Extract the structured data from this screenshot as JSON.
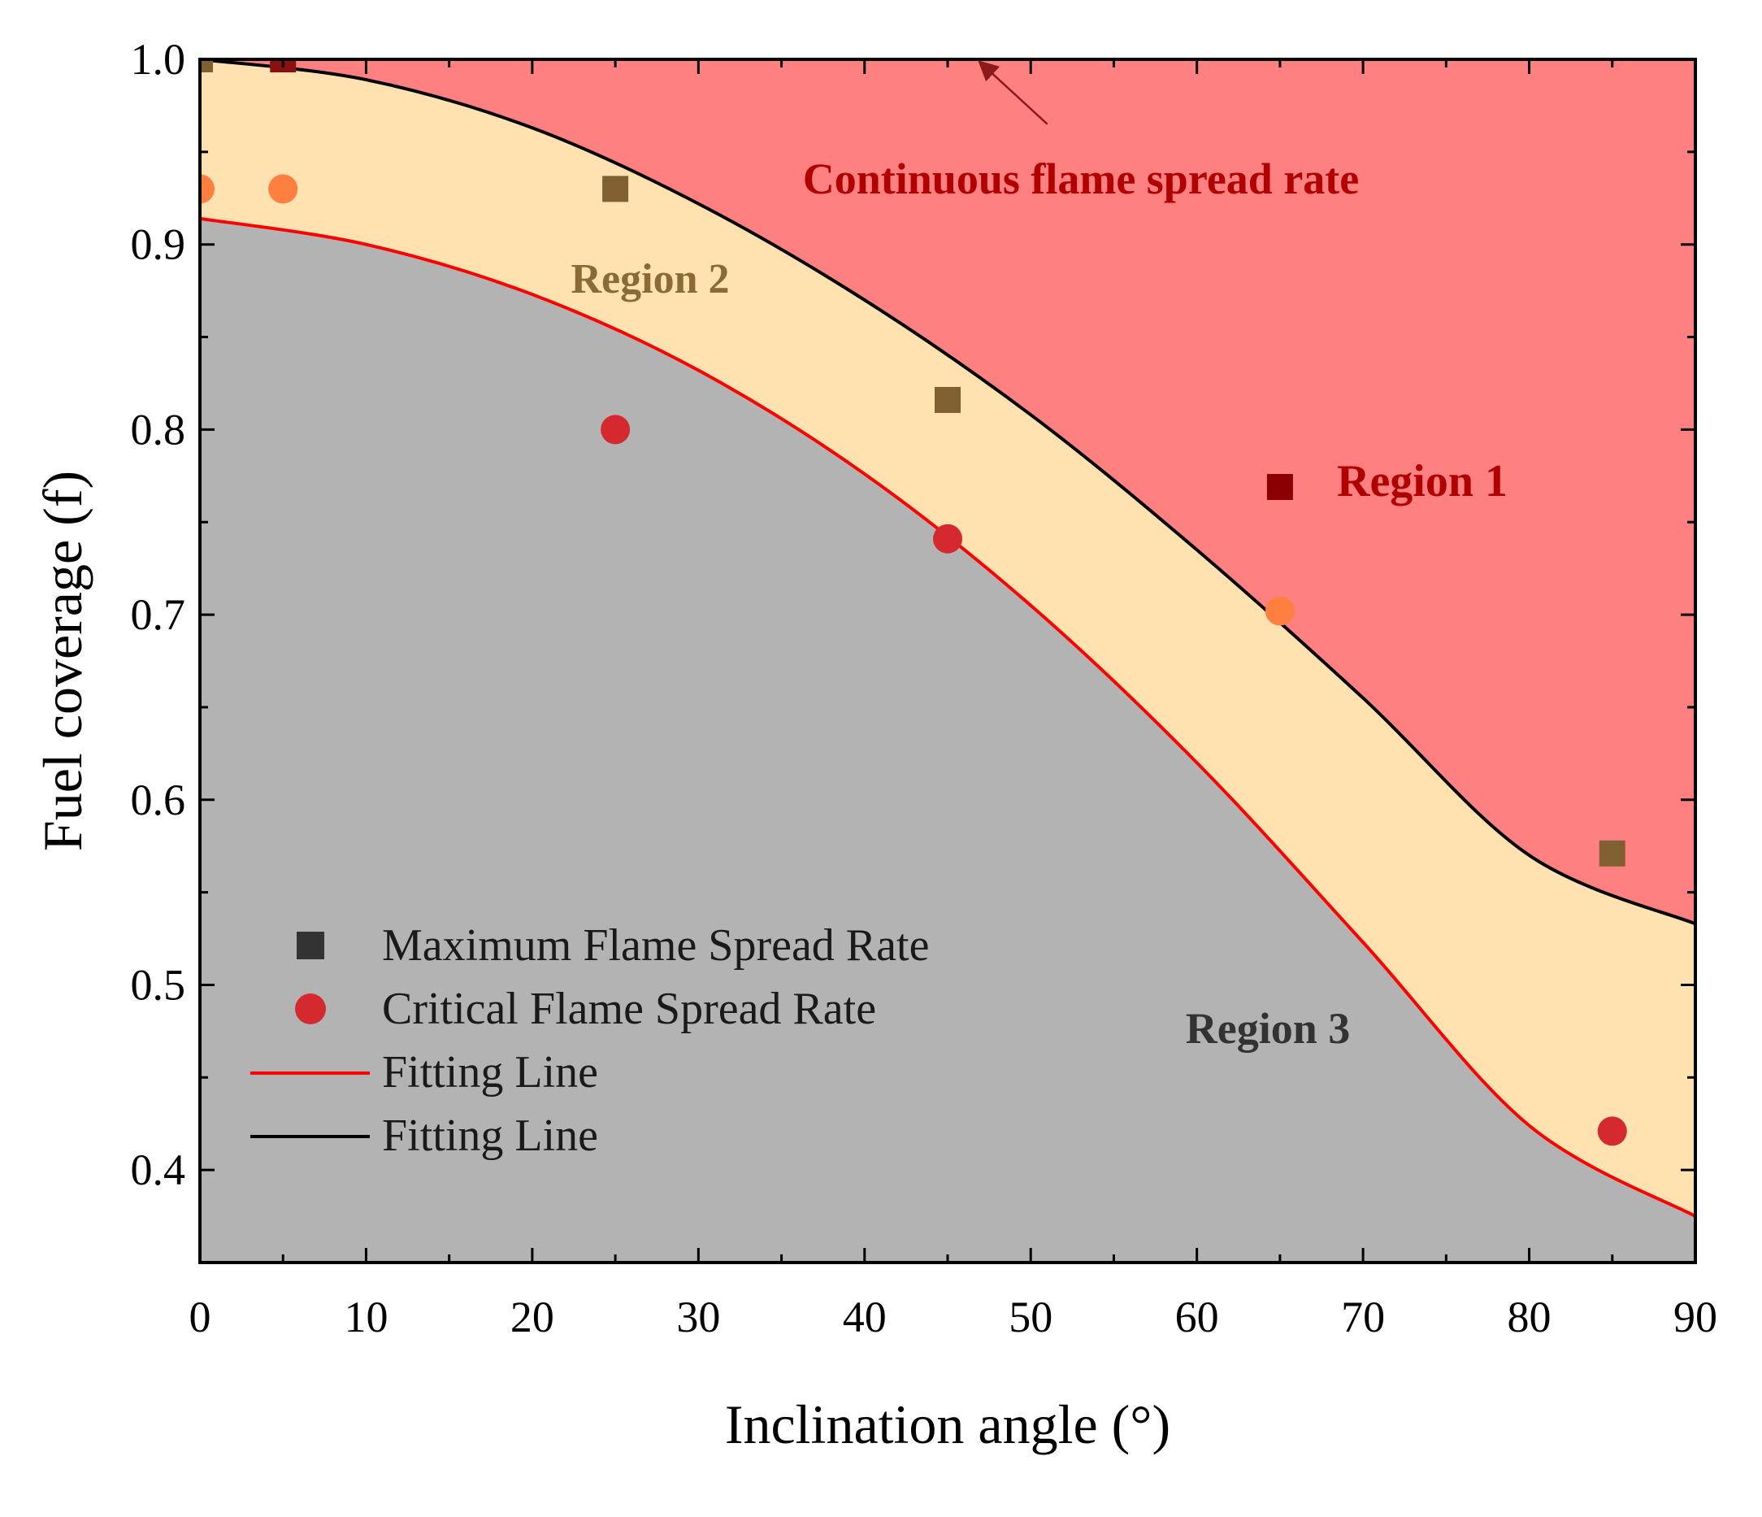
{
  "chart_data": {
    "type": "scatter",
    "xlabel": "Inclination angle (°)",
    "ylabel": "Fuel coverage (f)",
    "xlim": [
      0,
      90
    ],
    "ylim": [
      0.35,
      1.0
    ],
    "xticks": [
      0,
      10,
      20,
      30,
      40,
      50,
      60,
      70,
      80,
      90
    ],
    "yticks": [
      0.4,
      0.5,
      0.6,
      0.7,
      0.8,
      0.9,
      1.0
    ],
    "ytick_labels": [
      "0.4",
      "0.5",
      "0.6",
      "0.7",
      "0.8",
      "0.9",
      "1.0"
    ],
    "series": [
      {
        "name": "Maximum Flame Spread Rate",
        "marker": "square",
        "points": [
          {
            "x": 0,
            "y": 1.0,
            "color": "#806030"
          },
          {
            "x": 5,
            "y": 1.0,
            "color": "#8b1010"
          },
          {
            "x": 25,
            "y": 0.93,
            "color": "#806030"
          },
          {
            "x": 45,
            "y": 0.816,
            "color": "#806030"
          },
          {
            "x": 65,
            "y": 0.769,
            "color": "#8b0000"
          },
          {
            "x": 85,
            "y": 0.571,
            "color": "#806030"
          }
        ]
      },
      {
        "name": "Critical Flame Spread Rate",
        "marker": "circle",
        "points": [
          {
            "x": 0,
            "y": 0.93,
            "color": "#ff7f40"
          },
          {
            "x": 5,
            "y": 0.93,
            "color": "#ff7f40"
          },
          {
            "x": 25,
            "y": 0.8,
            "color": "#d42a2f"
          },
          {
            "x": 45,
            "y": 0.741,
            "color": "#d42a2f"
          },
          {
            "x": 65,
            "y": 0.702,
            "color": "#ff7f40"
          },
          {
            "x": 85,
            "y": 0.421,
            "color": "#d42a2f"
          }
        ]
      }
    ],
    "fits": [
      {
        "name": "Fitting Line",
        "color": "#ff0000",
        "x": [
          0,
          10,
          20,
          30,
          40,
          50,
          60,
          70,
          80,
          90
        ],
        "y": [
          0.914,
          0.9,
          0.873,
          0.832,
          0.776,
          0.705,
          0.62,
          0.523,
          0.424,
          0.375
        ]
      },
      {
        "name": "Fitting Line",
        "color": "#000000",
        "x": [
          0,
          10,
          20,
          30,
          40,
          50,
          60,
          70,
          80,
          90
        ],
        "y": [
          1.0,
          0.989,
          0.963,
          0.922,
          0.87,
          0.808,
          0.735,
          0.655,
          0.57,
          0.533
        ]
      }
    ],
    "regions": {
      "region1_color": "#ff8080",
      "region2_color": "#ffe2b0",
      "region3_color": "#b3b3b3"
    },
    "legend": [
      {
        "label": "Maximum Flame Spread Rate",
        "kind": "square",
        "color": "#333333"
      },
      {
        "label": "Critical Flame Spread Rate",
        "kind": "circle",
        "color": "#d42a2f"
      },
      {
        "label": "Fitting Line",
        "kind": "line",
        "color": "#ff0000"
      },
      {
        "label": "Fitting Line",
        "kind": "line",
        "color": "#000000"
      }
    ],
    "annotations": [
      {
        "text": "Continuous flame spread rate",
        "x": 53,
        "y": 0.935,
        "color": "#b00000"
      },
      {
        "text": "Region 2",
        "x": 27,
        "y": 0.878,
        "color": "#8b6a35"
      },
      {
        "text": "Region 1",
        "x": 73,
        "y": 0.77,
        "color": "#b00000"
      },
      {
        "text": "Region 3",
        "x": 64,
        "y": 0.488,
        "color": "#333333"
      }
    ],
    "arrow": {
      "from_x": 51,
      "from_y": 0.965,
      "to_x": 47,
      "to_y": 0.998,
      "color": "#8b1a1a"
    }
  }
}
